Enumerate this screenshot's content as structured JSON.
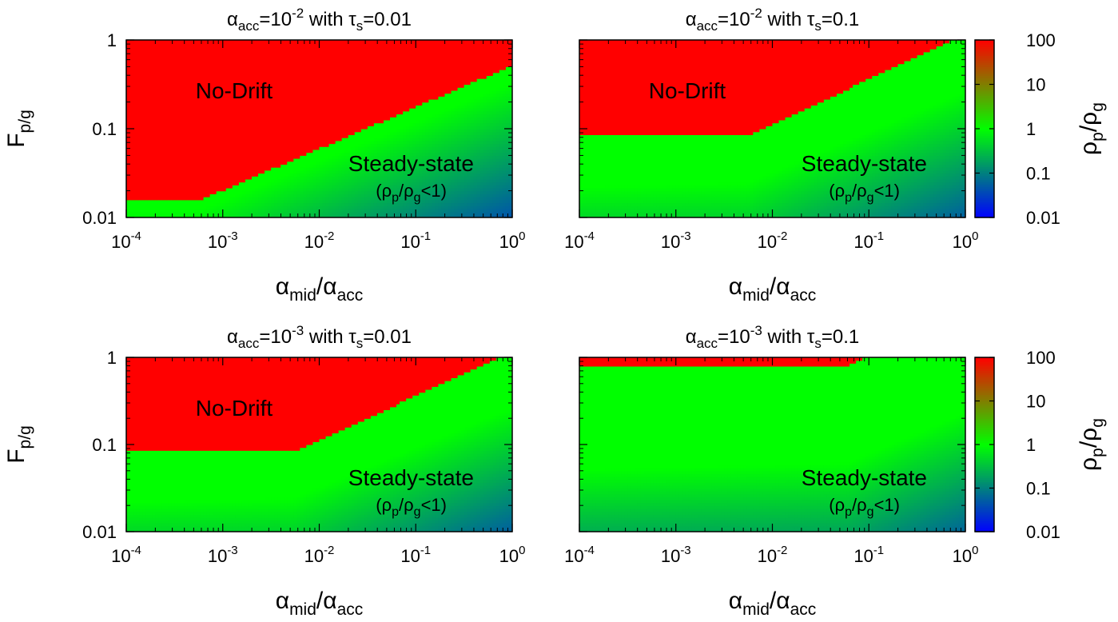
{
  "chart_data": [
    {
      "type": "heatmap",
      "title": {
        "base": "α",
        "sub": "acc",
        "mid": "=10",
        "sup": "-2",
        "rest": " with τ",
        "sub2": "s",
        "end": "=0.01"
      },
      "x": {
        "scale": "log",
        "range": [
          0.0001,
          1
        ],
        "ticks": [
          {
            "base": "10",
            "exp": "-4"
          },
          {
            "base": "10",
            "exp": "-3"
          },
          {
            "base": "10",
            "exp": "-2"
          },
          {
            "base": "10",
            "exp": "-1"
          },
          {
            "base": "10",
            "exp": "0"
          }
        ]
      },
      "y": {
        "scale": "log",
        "range": [
          0.01,
          1
        ],
        "ticks": [
          "0.01",
          "0.1",
          "1"
        ]
      },
      "xlabel": {
        "a": "α",
        "a_sub": "mid",
        "slash": "/",
        "b": "α",
        "b_sub": "acc"
      },
      "ylabel": {
        "a": "F",
        "a_sub": "p/g"
      },
      "regions": {
        "no_drift": "No-Drift",
        "steady": "Steady-state",
        "sub": {
          "open": "(ρ",
          "s1": "p",
          "mid": "/ρ",
          "s2": "g",
          "close": "<1)"
        }
      },
      "boundary": {
        "knee_x": 0.0006,
        "floor_y": 0.016,
        "end_x": 1.0,
        "end_y": 0.52
      }
    },
    {
      "type": "heatmap",
      "title": {
        "base": "α",
        "sub": "acc",
        "mid": "=10",
        "sup": "-2",
        "rest": " with τ",
        "sub2": "s",
        "end": "=0.1"
      },
      "x": {
        "scale": "log",
        "range": [
          0.0001,
          1
        ],
        "ticks": [
          {
            "base": "10",
            "exp": "-4"
          },
          {
            "base": "10",
            "exp": "-3"
          },
          {
            "base": "10",
            "exp": "-2"
          },
          {
            "base": "10",
            "exp": "-1"
          },
          {
            "base": "10",
            "exp": "0"
          }
        ]
      },
      "y": {
        "scale": "log",
        "range": [
          0.01,
          1
        ],
        "ticks": []
      },
      "xlabel": {
        "a": "α",
        "a_sub": "mid",
        "slash": "/",
        "b": "α",
        "b_sub": "acc"
      },
      "ylabel": null,
      "regions": {
        "no_drift": "No-Drift",
        "steady": "Steady-state",
        "sub": {
          "open": "(ρ",
          "s1": "p",
          "mid": "/ρ",
          "s2": "g",
          "close": "<1)"
        }
      },
      "boundary": {
        "knee_x": 0.0055,
        "floor_y": 0.084,
        "end_x": 0.75,
        "end_y": 1.0
      }
    },
    {
      "type": "heatmap",
      "title": {
        "base": "α",
        "sub": "acc",
        "mid": "=10",
        "sup": "-3",
        "rest": " with τ",
        "sub2": "s",
        "end": "=0.01"
      },
      "x": {
        "scale": "log",
        "range": [
          0.0001,
          1
        ],
        "ticks": [
          {
            "base": "10",
            "exp": "-4"
          },
          {
            "base": "10",
            "exp": "-3"
          },
          {
            "base": "10",
            "exp": "-2"
          },
          {
            "base": "10",
            "exp": "-1"
          },
          {
            "base": "10",
            "exp": "0"
          }
        ]
      },
      "y": {
        "scale": "log",
        "range": [
          0.01,
          1
        ],
        "ticks": [
          "0.01",
          "0.1",
          "1"
        ]
      },
      "xlabel": {
        "a": "α",
        "a_sub": "mid",
        "slash": "/",
        "b": "α",
        "b_sub": "acc"
      },
      "ylabel": {
        "a": "F",
        "a_sub": "p/g"
      },
      "regions": {
        "no_drift": "No-Drift",
        "steady": "Steady-state",
        "sub": {
          "open": "(ρ",
          "s1": "p",
          "mid": "/ρ",
          "s2": "g",
          "close": "<1)"
        }
      },
      "boundary": {
        "knee_x": 0.0055,
        "floor_y": 0.084,
        "end_x": 0.75,
        "end_y": 1.0
      }
    },
    {
      "type": "heatmap",
      "title": {
        "base": "α",
        "sub": "acc",
        "mid": "=10",
        "sup": "-3",
        "rest": " with τ",
        "sub2": "s",
        "end": "=0.1"
      },
      "x": {
        "scale": "log",
        "range": [
          0.0001,
          1
        ],
        "ticks": [
          {
            "base": "10",
            "exp": "-4"
          },
          {
            "base": "10",
            "exp": "-3"
          },
          {
            "base": "10",
            "exp": "-2"
          },
          {
            "base": "10",
            "exp": "-1"
          },
          {
            "base": "10",
            "exp": "0"
          }
        ]
      },
      "y": {
        "scale": "log",
        "range": [
          0.01,
          1
        ],
        "ticks": []
      },
      "xlabel": {
        "a": "α",
        "a_sub": "mid",
        "slash": "/",
        "b": "α",
        "b_sub": "acc"
      },
      "ylabel": null,
      "regions": {
        "no_drift": "",
        "steady": "Steady-state",
        "sub": {
          "open": "(ρ",
          "s1": "p",
          "mid": "/ρ",
          "s2": "g",
          "close": "<1)"
        }
      },
      "boundary": {
        "knee_x": 0.06,
        "floor_y": 0.8,
        "end_x": 0.09,
        "end_y": 1.0
      }
    }
  ],
  "colorbar": {
    "scale": "log",
    "range": [
      0.01,
      100
    ],
    "ticks": [
      "100",
      "10",
      "1",
      "0.1",
      "0.01"
    ],
    "label": {
      "a": "ρ",
      "a_sub": "p",
      "slash": "/ρ",
      "b_sub": "g"
    },
    "colors": {
      "low": "#0000ff",
      "mid": "#00ff00",
      "high": "#ff0000"
    }
  }
}
